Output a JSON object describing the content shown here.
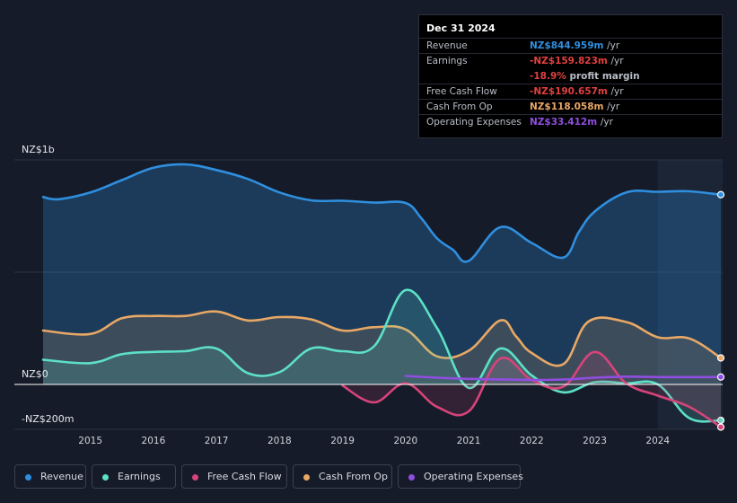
{
  "chart_data": {
    "type": "area",
    "x_range": [
      2014.25,
      2025.0
    ],
    "ylim": [
      -200,
      1000
    ],
    "yticks": [
      {
        "value": 1000,
        "label": "NZ$1b"
      },
      {
        "value": 0,
        "label": "NZ$0"
      },
      {
        "value": -200,
        "label": "-NZ$200m"
      }
    ],
    "xticks": [
      "2015",
      "2016",
      "2017",
      "2018",
      "2019",
      "2020",
      "2021",
      "2022",
      "2023",
      "2024"
    ],
    "forecast_shade_start": 2024.0,
    "series": [
      {
        "name": "Revenue",
        "color": "#2f8fdf",
        "fill": true,
        "points": [
          [
            2014.25,
            835
          ],
          [
            2014.5,
            825
          ],
          [
            2015,
            855
          ],
          [
            2015.5,
            910
          ],
          [
            2016,
            965
          ],
          [
            2016.5,
            980
          ],
          [
            2017,
            955
          ],
          [
            2017.5,
            915
          ],
          [
            2018,
            855
          ],
          [
            2018.5,
            820
          ],
          [
            2019,
            818
          ],
          [
            2019.5,
            810
          ],
          [
            2020,
            808
          ],
          [
            2020.25,
            740
          ],
          [
            2020.5,
            650
          ],
          [
            2020.75,
            600
          ],
          [
            2021,
            550
          ],
          [
            2021.5,
            700
          ],
          [
            2022,
            630
          ],
          [
            2022.5,
            565
          ],
          [
            2022.75,
            680
          ],
          [
            2023,
            770
          ],
          [
            2023.5,
            855
          ],
          [
            2024,
            858
          ],
          [
            2024.5,
            860
          ],
          [
            2025,
            845
          ]
        ]
      },
      {
        "name": "Cash From Op",
        "color": "#e8a865",
        "fill": true,
        "points": [
          [
            2014.25,
            240
          ],
          [
            2015,
            225
          ],
          [
            2015.5,
            295
          ],
          [
            2016,
            305
          ],
          [
            2016.5,
            305
          ],
          [
            2017,
            325
          ],
          [
            2017.5,
            285
          ],
          [
            2018,
            300
          ],
          [
            2018.5,
            290
          ],
          [
            2019,
            240
          ],
          [
            2019.5,
            255
          ],
          [
            2020,
            245
          ],
          [
            2020.5,
            125
          ],
          [
            2021,
            150
          ],
          [
            2021.5,
            285
          ],
          [
            2021.75,
            215
          ],
          [
            2022,
            140
          ],
          [
            2022.5,
            90
          ],
          [
            2022.9,
            280
          ],
          [
            2023.5,
            278
          ],
          [
            2024,
            210
          ],
          [
            2024.5,
            205
          ],
          [
            2025,
            118
          ]
        ]
      },
      {
        "name": "Earnings",
        "color": "#5de0c5",
        "fill": true,
        "points": [
          [
            2014.25,
            110
          ],
          [
            2015,
            95
          ],
          [
            2015.5,
            135
          ],
          [
            2016,
            145
          ],
          [
            2016.5,
            148
          ],
          [
            2017,
            160
          ],
          [
            2017.5,
            50
          ],
          [
            2018,
            55
          ],
          [
            2018.5,
            160
          ],
          [
            2019,
            148
          ],
          [
            2019.5,
            170
          ],
          [
            2020,
            420
          ],
          [
            2020.5,
            250
          ],
          [
            2021,
            -15
          ],
          [
            2021.5,
            160
          ],
          [
            2022,
            40
          ],
          [
            2022.5,
            -35
          ],
          [
            2023,
            10
          ],
          [
            2023.5,
            5
          ],
          [
            2024,
            0
          ],
          [
            2024.5,
            -150
          ],
          [
            2025,
            -160
          ]
        ]
      },
      {
        "name": "Free Cash Flow",
        "color": "#d6447a",
        "fill": true,
        "points": [
          [
            2019,
            -5
          ],
          [
            2019.5,
            -80
          ],
          [
            2020,
            5
          ],
          [
            2020.5,
            -100
          ],
          [
            2021,
            -120
          ],
          [
            2021.5,
            115
          ],
          [
            2022,
            20
          ],
          [
            2022.5,
            -10
          ],
          [
            2023,
            145
          ],
          [
            2023.5,
            5
          ],
          [
            2024,
            -50
          ],
          [
            2024.5,
            -100
          ],
          [
            2025,
            -190
          ]
        ]
      },
      {
        "name": "Operating Expenses",
        "color": "#8f4ee0",
        "fill": false,
        "points": [
          [
            2020,
            38
          ],
          [
            2020.5,
            30
          ],
          [
            2021,
            25
          ],
          [
            2022,
            20
          ],
          [
            2022.5,
            22
          ],
          [
            2023,
            30
          ],
          [
            2023.5,
            35
          ],
          [
            2024,
            33
          ],
          [
            2025,
            33
          ]
        ]
      }
    ]
  },
  "tooltip": {
    "date": "Dec 31 2024",
    "rows": [
      {
        "label": "Revenue",
        "value": "NZ$844.959m",
        "unit": "/yr",
        "color": "#2f8fdf"
      },
      {
        "label": "Earnings",
        "value": "-NZ$159.823m",
        "unit": "/yr",
        "color": "#e0403f"
      },
      {
        "label": "",
        "value": "-18.9%",
        "unit": "profit margin",
        "color": "#e0403f"
      },
      {
        "label": "Free Cash Flow",
        "value": "-NZ$190.657m",
        "unit": "/yr",
        "color": "#e0403f"
      },
      {
        "label": "Cash From Op",
        "value": "NZ$118.058m",
        "unit": "/yr",
        "color": "#e8a865"
      },
      {
        "label": "Operating Expenses",
        "value": "NZ$33.412m",
        "unit": "/yr",
        "color": "#8f4ee0"
      }
    ]
  },
  "legend": [
    {
      "label": "Revenue",
      "color": "#2f8fdf"
    },
    {
      "label": "Earnings",
      "color": "#5de0c5"
    },
    {
      "label": "Free Cash Flow",
      "color": "#d6447a"
    },
    {
      "label": "Cash From Op",
      "color": "#e8a865"
    },
    {
      "label": "Operating Expenses",
      "color": "#8f4ee0"
    }
  ]
}
